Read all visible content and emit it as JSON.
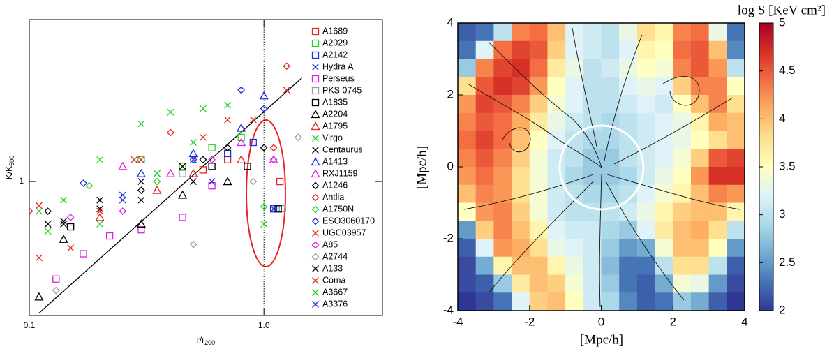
{
  "chart_data": [
    {
      "type": "scatter",
      "xscale": "log",
      "yscale": "log",
      "xlabel": [
        "r/r",
        "200"
      ],
      "ylabel": [
        "K/K",
        "500"
      ],
      "xlim": [
        0.1,
        3.2
      ],
      "ylim": [
        0.2,
        7
      ],
      "xticks": [
        0.1,
        {
          "value": 1,
          "label": "1.0"
        }
      ],
      "yticks": [
        1
      ],
      "vline": 1,
      "legend": "upper right",
      "reference_line": {
        "x": [
          0.11,
          1.45
        ],
        "values": [
          0.206,
          3.47
        ],
        "color": "#000000"
      },
      "series": [
        {
          "name": "A1689",
          "color": "#e8251f",
          "marker": "square",
          "x": [
            0.55,
            0.7,
            1.17
          ],
          "values": [
            1.15,
            1.3,
            1.0
          ]
        },
        {
          "name": "A2029",
          "color": "#22d322",
          "marker": "square",
          "x": [
            0.3,
            0.45,
            0.6,
            0.8
          ],
          "values": [
            1.3,
            1.2,
            1.5,
            1.7
          ]
        },
        {
          "name": "A2142",
          "color": "#1c2fe0",
          "marker": "square",
          "x": [
            0.7,
            0.9,
            1.1
          ],
          "values": [
            1.4,
            1.6,
            0.72
          ]
        },
        {
          "name": "Hydra A",
          "color": "#1c2fe0",
          "marker": "x",
          "x": [
            0.25,
            0.35,
            0.5
          ],
          "values": [
            0.85,
            1.1,
            1.3
          ]
        },
        {
          "name": "Perseus",
          "color": "#e020e0",
          "marker": "square",
          "x": [
            0.13,
            0.17,
            0.22,
            0.3,
            0.45,
            0.6
          ],
          "values": [
            0.31,
            0.42,
            0.52,
            0.56,
            0.65,
            0.95
          ]
        },
        {
          "name": "PKS 0745",
          "color": "#9a9a9a",
          "marker": "square",
          "x": [
            0.45,
            1.2
          ],
          "values": [
            1.1,
            0.72
          ]
        },
        {
          "name": "A1835",
          "color": "#000000",
          "marker": "square",
          "x": [
            0.15,
            0.6,
            0.85,
            1.15
          ],
          "values": [
            0.58,
            1.2,
            1.2,
            0.72
          ]
        },
        {
          "name": "A2204",
          "color": "#000000",
          "marker": "triangle",
          "x": [
            0.11,
            0.14,
            0.3,
            0.45,
            0.7
          ],
          "values": [
            0.25,
            0.5,
            0.6,
            0.85,
            1.0
          ]
        },
        {
          "name": "A1795",
          "color": "#e8251f",
          "marker": "triangle",
          "x": [
            0.2,
            0.35,
            0.5,
            0.8
          ],
          "values": [
            0.65,
            0.9,
            1.1,
            1.3
          ]
        },
        {
          "name": "Virgo",
          "color": "#22d322",
          "marker": "x",
          "x": [
            0.11,
            0.14,
            0.2,
            0.3,
            0.4,
            0.55,
            0.7
          ],
          "values": [
            0.7,
            0.8,
            1.3,
            2.0,
            2.3,
            2.4,
            2.5
          ]
        },
        {
          "name": "Centaurus",
          "color": "#000000",
          "marker": "x",
          "x": [
            0.12,
            0.14,
            0.2,
            0.3,
            0.45
          ],
          "values": [
            0.6,
            0.62,
            0.8,
            1.0,
            1.2
          ]
        },
        {
          "name": "A1413",
          "color": "#1c2fe0",
          "marker": "triangle",
          "x": [
            0.3,
            0.5,
            0.8,
            1.0
          ],
          "values": [
            1.1,
            1.4,
            1.9,
            2.8
          ]
        },
        {
          "name": "RXJ1159",
          "color": "#e020e0",
          "marker": "triangle",
          "x": [
            0.25,
            0.4,
            0.8,
            1.1
          ],
          "values": [
            1.2,
            1.1,
            1.6,
            1.3
          ]
        },
        {
          "name": "A1246",
          "color": "#000000",
          "marker": "diamond",
          "x": [
            0.12,
            0.3,
            0.55,
            0.7,
            1.0
          ],
          "values": [
            0.7,
            0.9,
            1.3,
            1.5,
            1.5
          ]
        },
        {
          "name": "Antlia",
          "color": "#e8251f",
          "marker": "diamond",
          "x": [
            0.1,
            0.4,
            1.1,
            1.25
          ],
          "values": [
            0.7,
            1.8,
            1.5,
            4.0
          ]
        },
        {
          "name": "A1750N",
          "color": "#22d322",
          "marker": "diamond",
          "x": [
            0.18,
            0.35,
            1.0
          ],
          "values": [
            0.95,
            1.0,
            0.74
          ]
        },
        {
          "name": "ESO3060170",
          "color": "#1c2fe0",
          "marker": "diamond",
          "x": [
            0.17,
            0.5,
            0.8,
            1.0
          ],
          "values": [
            0.98,
            1.3,
            3.0,
            2.4
          ]
        },
        {
          "name": "UGC03957",
          "color": "#e8251f",
          "marker": "x",
          "x": [
            0.11,
            0.28,
            0.9,
            1.25
          ],
          "values": [
            0.75,
            1.3,
            2.1,
            3.0
          ]
        },
        {
          "name": "A85",
          "color": "#e020e0",
          "marker": "diamond",
          "x": [
            0.15,
            0.25,
            0.6,
            1.1
          ],
          "values": [
            0.65,
            0.7,
            1.3,
            1.3
          ]
        },
        {
          "name": "A2744",
          "color": "#9a9a9a",
          "marker": "diamond",
          "x": [
            0.13,
            0.5,
            0.9,
            1.4
          ],
          "values": [
            0.27,
            0.47,
            1.0,
            1.7
          ]
        },
        {
          "name": "A133",
          "color": "#000000",
          "marker": "bowtie",
          "x": [
            0.14,
            0.2,
            0.3,
            0.5
          ],
          "values": [
            0.6,
            0.72,
            0.8,
            1.0
          ]
        },
        {
          "name": "Coma",
          "color": "#e8251f",
          "marker": "bowtie",
          "x": [
            0.11,
            0.15,
            0.2,
            0.3,
            0.55,
            0.7
          ],
          "values": [
            0.4,
            0.45,
            0.7,
            1.3,
            1.7,
            2.1
          ]
        },
        {
          "name": "A3667",
          "color": "#22d322",
          "marker": "bowtie",
          "x": [
            0.12,
            0.2,
            0.35,
            0.5,
            1.0
          ],
          "values": [
            0.55,
            0.6,
            1.1,
            1.6,
            0.6
          ]
        },
        {
          "name": "A3376",
          "color": "#1c2fe0",
          "marker": "bowtie",
          "x": [
            0.25,
            0.6,
            1.1
          ],
          "values": [
            0.8,
            1.0,
            0.72
          ]
        }
      ]
    },
    {
      "type": "heatmap",
      "xlabel": "[Mpc/h]",
      "ylabel": "[Mpc/h]",
      "colorbar_label": "log S [KeV cm²]",
      "xlim": [
        -4,
        4
      ],
      "ylim": [
        -4,
        4
      ],
      "xticks": [
        -4,
        -2,
        0,
        2,
        4
      ],
      "yticks": [
        -4,
        -2,
        0,
        2,
        4
      ],
      "zlim": [
        2,
        5
      ],
      "zticks": [
        2,
        2.5,
        3,
        3.5,
        4,
        4.5,
        5
      ],
      "colormap": [
        "#313695",
        "#4575b4",
        "#74add1",
        "#abd9e9",
        "#e0f3f8",
        "#ffffbf",
        "#fee090",
        "#fdae61",
        "#f46d43",
        "#d73027",
        "#a50026"
      ],
      "x": [
        -3.75,
        -3.25,
        -2.75,
        -2.25,
        -1.75,
        -1.25,
        -0.75,
        -0.25,
        0.25,
        0.75,
        1.25,
        1.75,
        2.25,
        2.75,
        3.25,
        3.75
      ],
      "y": [
        3.75,
        3.25,
        2.75,
        2.25,
        1.75,
        1.25,
        0.75,
        0.25,
        -0.25,
        -0.75,
        -1.25,
        -1.75,
        -2.25,
        -2.75,
        -3.25,
        -3.75
      ],
      "values": [
        [
          2.2,
          2.3,
          3.0,
          4.3,
          4.4,
          4.0,
          3.2,
          3.1,
          3.0,
          3.3,
          3.8,
          3.6,
          4.3,
          4.4,
          3.3,
          2.3
        ],
        [
          2.3,
          3.2,
          4.4,
          4.6,
          4.5,
          3.9,
          3.2,
          3.1,
          3.0,
          3.2,
          3.6,
          3.5,
          4.4,
          4.5,
          4.0,
          2.4
        ],
        [
          2.8,
          4.3,
          4.6,
          4.7,
          4.4,
          3.7,
          3.3,
          3.0,
          3.1,
          3.3,
          3.5,
          3.4,
          4.3,
          4.5,
          4.2,
          3.0
        ],
        [
          3.8,
          4.5,
          4.7,
          4.6,
          4.2,
          3.5,
          3.2,
          3.0,
          3.0,
          3.2,
          3.3,
          3.2,
          3.9,
          4.3,
          4.3,
          3.5
        ],
        [
          4.2,
          4.6,
          4.5,
          4.3,
          3.9,
          3.4,
          3.2,
          3.0,
          3.0,
          3.1,
          3.2,
          3.1,
          3.5,
          4.0,
          4.3,
          3.8
        ],
        [
          4.3,
          4.5,
          4.4,
          4.1,
          3.7,
          3.3,
          3.1,
          3.0,
          2.9,
          3.0,
          3.1,
          3.2,
          3.3,
          3.6,
          4.1,
          4.0
        ],
        [
          4.4,
          4.6,
          4.4,
          4.0,
          3.5,
          3.2,
          3.0,
          2.9,
          2.9,
          3.0,
          3.1,
          3.2,
          3.3,
          3.5,
          3.8,
          4.0
        ],
        [
          4.3,
          4.5,
          4.3,
          3.9,
          3.4,
          3.1,
          3.0,
          2.8,
          2.8,
          3.0,
          3.1,
          3.2,
          3.4,
          3.9,
          4.5,
          4.6
        ],
        [
          4.2,
          4.4,
          4.2,
          3.8,
          3.4,
          3.1,
          2.9,
          2.8,
          2.8,
          2.9,
          3.1,
          3.3,
          3.5,
          4.2,
          4.7,
          4.7
        ],
        [
          4.0,
          4.3,
          4.2,
          3.8,
          3.4,
          3.1,
          3.0,
          2.9,
          2.9,
          3.0,
          3.2,
          3.4,
          3.6,
          4.0,
          4.3,
          4.2
        ],
        [
          3.5,
          4.2,
          4.3,
          3.9,
          3.4,
          3.1,
          3.0,
          3.0,
          3.0,
          3.1,
          3.3,
          3.6,
          3.9,
          4.0,
          4.0,
          3.6
        ],
        [
          2.5,
          3.9,
          4.3,
          4.0,
          3.6,
          3.2,
          3.1,
          3.1,
          2.9,
          2.8,
          3.2,
          3.7,
          4.0,
          4.1,
          3.8,
          3.0
        ],
        [
          2.2,
          3.2,
          4.2,
          4.1,
          3.8,
          3.3,
          3.2,
          3.1,
          2.8,
          2.5,
          2.6,
          3.4,
          4.0,
          4.0,
          3.5,
          2.5
        ],
        [
          2.1,
          2.6,
          3.6,
          4.0,
          4.0,
          3.6,
          3.3,
          3.1,
          2.7,
          2.3,
          2.3,
          3.0,
          3.8,
          3.8,
          3.0,
          2.2
        ],
        [
          2.1,
          2.2,
          2.8,
          3.7,
          4.0,
          3.9,
          3.4,
          3.1,
          2.8,
          2.3,
          2.2,
          2.6,
          3.4,
          3.3,
          2.5,
          2.1
        ],
        [
          2.0,
          2.1,
          2.3,
          3.2,
          3.9,
          4.0,
          3.5,
          3.1,
          2.9,
          2.4,
          2.2,
          2.3,
          2.8,
          2.6,
          2.2,
          2.0
        ]
      ]
    }
  ]
}
